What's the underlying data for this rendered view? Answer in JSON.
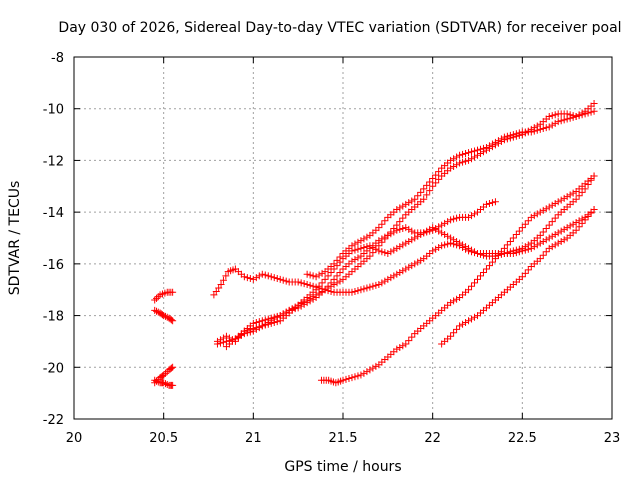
{
  "chart_data": {
    "type": "scatter",
    "title": "Day 030 of 2026, Sidereal Day-to-day VTEC variation (SDTVAR) for receiver poal",
    "xlabel": "GPS time / hours",
    "ylabel": "SDTVAR / TECUs",
    "xlim": [
      20,
      23
    ],
    "ylim": [
      -22,
      -8
    ],
    "xticks": [
      20,
      20.5,
      21,
      21.5,
      22,
      22.5,
      23
    ],
    "xtick_labels": [
      "20",
      "20.5",
      "21",
      "21.5",
      "22",
      "22.5",
      "23"
    ],
    "yticks": [
      -22,
      -20,
      -18,
      -16,
      -14,
      -12,
      -10,
      -8
    ],
    "ytick_labels": [
      "-22",
      "-20",
      "-18",
      "-16",
      "-14",
      "-12",
      "-10",
      "-8"
    ],
    "grid": true,
    "marker": "+",
    "color": "#ff0000",
    "series": [
      {
        "name": "s1",
        "points": [
          [
            20.45,
            -17.4
          ],
          [
            20.48,
            -17.2
          ],
          [
            20.52,
            -17.1
          ],
          [
            20.55,
            -17.1
          ]
        ]
      },
      {
        "name": "s2",
        "points": [
          [
            20.45,
            -17.8
          ],
          [
            20.48,
            -17.9
          ],
          [
            20.5,
            -18.0
          ],
          [
            20.53,
            -18.1
          ],
          [
            20.55,
            -18.2
          ]
        ]
      },
      {
        "name": "s3",
        "points": [
          [
            20.45,
            -20.6
          ],
          [
            20.48,
            -20.4
          ],
          [
            20.5,
            -20.3
          ],
          [
            20.53,
            -20.1
          ],
          [
            20.55,
            -20.0
          ]
        ]
      },
      {
        "name": "s4",
        "points": [
          [
            20.45,
            -20.5
          ],
          [
            20.48,
            -20.6
          ],
          [
            20.5,
            -20.6
          ],
          [
            20.53,
            -20.7
          ],
          [
            20.55,
            -20.7
          ]
        ]
      },
      {
        "name": "s5",
        "points": [
          [
            20.78,
            -17.2
          ],
          [
            20.82,
            -16.8
          ],
          [
            20.86,
            -16.3
          ],
          [
            20.9,
            -16.2
          ],
          [
            20.95,
            -16.5
          ],
          [
            21.0,
            -16.6
          ],
          [
            21.05,
            -16.4
          ],
          [
            21.1,
            -16.5
          ],
          [
            21.15,
            -16.6
          ],
          [
            21.2,
            -16.7
          ],
          [
            21.25,
            -16.7
          ],
          [
            21.3,
            -16.8
          ],
          [
            21.35,
            -16.9
          ],
          [
            21.4,
            -17.0
          ],
          [
            21.45,
            -17.1
          ],
          [
            21.5,
            -17.1
          ],
          [
            21.55,
            -17.1
          ],
          [
            21.6,
            -17.0
          ],
          [
            21.65,
            -16.9
          ],
          [
            21.7,
            -16.8
          ],
          [
            21.75,
            -16.6
          ],
          [
            21.8,
            -16.4
          ],
          [
            21.85,
            -16.2
          ],
          [
            21.9,
            -16.0
          ],
          [
            21.95,
            -15.8
          ],
          [
            22.0,
            -15.5
          ],
          [
            22.05,
            -15.3
          ],
          [
            22.1,
            -15.2
          ],
          [
            22.15,
            -15.3
          ],
          [
            22.2,
            -15.5
          ],
          [
            22.25,
            -15.6
          ],
          [
            22.3,
            -15.6
          ],
          [
            22.35,
            -15.6
          ],
          [
            22.4,
            -15.6
          ],
          [
            22.45,
            -15.6
          ],
          [
            22.5,
            -15.5
          ],
          [
            22.55,
            -15.4
          ],
          [
            22.6,
            -15.2
          ],
          [
            22.65,
            -15.0
          ],
          [
            22.7,
            -14.8
          ],
          [
            22.75,
            -14.6
          ],
          [
            22.8,
            -14.4
          ],
          [
            22.85,
            -14.2
          ],
          [
            22.9,
            -13.9
          ]
        ]
      },
      {
        "name": "s6",
        "points": [
          [
            20.8,
            -19.0
          ],
          [
            20.85,
            -18.8
          ],
          [
            20.9,
            -19.0
          ],
          [
            20.95,
            -18.6
          ],
          [
            21.0,
            -18.3
          ],
          [
            21.05,
            -18.2
          ],
          [
            21.1,
            -18.1
          ],
          [
            21.15,
            -18.0
          ],
          [
            21.2,
            -17.8
          ],
          [
            21.25,
            -17.7
          ],
          [
            21.3,
            -17.5
          ],
          [
            21.35,
            -17.3
          ],
          [
            21.4,
            -17.0
          ],
          [
            21.45,
            -16.6
          ],
          [
            21.5,
            -16.2
          ],
          [
            21.55,
            -15.9
          ],
          [
            21.6,
            -15.7
          ],
          [
            21.65,
            -15.4
          ],
          [
            21.7,
            -15.1
          ],
          [
            21.75,
            -14.9
          ],
          [
            21.8,
            -14.7
          ],
          [
            21.85,
            -14.6
          ],
          [
            21.9,
            -14.8
          ],
          [
            21.95,
            -14.8
          ],
          [
            22.0,
            -14.7
          ],
          [
            22.05,
            -14.5
          ],
          [
            22.1,
            -14.3
          ],
          [
            22.15,
            -14.2
          ],
          [
            22.2,
            -14.2
          ],
          [
            22.25,
            -14.0
          ],
          [
            22.3,
            -13.7
          ],
          [
            22.35,
            -13.6
          ]
        ]
      },
      {
        "name": "s7",
        "points": [
          [
            20.8,
            -19.1
          ],
          [
            20.85,
            -19.0
          ],
          [
            20.9,
            -18.9
          ],
          [
            20.95,
            -18.7
          ],
          [
            21.0,
            -18.6
          ],
          [
            21.05,
            -18.4
          ],
          [
            21.1,
            -18.3
          ],
          [
            21.15,
            -18.2
          ],
          [
            21.2,
            -17.9
          ],
          [
            21.25,
            -17.6
          ],
          [
            21.3,
            -17.3
          ],
          [
            21.35,
            -17.0
          ],
          [
            21.4,
            -16.6
          ],
          [
            21.45,
            -16.2
          ],
          [
            21.5,
            -15.8
          ],
          [
            21.55,
            -15.5
          ],
          [
            21.6,
            -15.4
          ],
          [
            21.65,
            -15.3
          ],
          [
            21.7,
            -15.5
          ],
          [
            21.75,
            -15.6
          ],
          [
            21.8,
            -15.4
          ],
          [
            21.85,
            -15.2
          ],
          [
            21.9,
            -15.0
          ],
          [
            21.95,
            -14.8
          ],
          [
            22.0,
            -14.6
          ],
          [
            22.05,
            -14.8
          ],
          [
            22.1,
            -15.0
          ],
          [
            22.15,
            -15.2
          ],
          [
            22.2,
            -15.4
          ],
          [
            22.25,
            -15.6
          ],
          [
            22.3,
            -15.7
          ],
          [
            22.35,
            -15.7
          ],
          [
            22.4,
            -15.6
          ],
          [
            22.45,
            -15.5
          ],
          [
            22.5,
            -15.4
          ],
          [
            22.55,
            -15.2
          ],
          [
            22.6,
            -14.9
          ],
          [
            22.65,
            -14.5
          ],
          [
            22.7,
            -14.1
          ],
          [
            22.75,
            -13.8
          ],
          [
            22.8,
            -13.5
          ],
          [
            22.85,
            -13.1
          ],
          [
            22.9,
            -12.6
          ]
        ]
      },
      {
        "name": "s8",
        "points": [
          [
            20.85,
            -19.2
          ],
          [
            20.9,
            -18.9
          ],
          [
            20.95,
            -18.6
          ],
          [
            21.0,
            -18.5
          ],
          [
            21.05,
            -18.4
          ],
          [
            21.1,
            -18.2
          ],
          [
            21.15,
            -18.0
          ],
          [
            21.2,
            -17.8
          ],
          [
            21.25,
            -17.6
          ],
          [
            21.3,
            -17.4
          ],
          [
            21.35,
            -17.2
          ],
          [
            21.4,
            -17.0
          ],
          [
            21.45,
            -16.8
          ],
          [
            21.5,
            -16.6
          ],
          [
            21.55,
            -16.3
          ],
          [
            21.6,
            -16.0
          ],
          [
            21.65,
            -15.7
          ],
          [
            21.7,
            -15.3
          ],
          [
            21.75,
            -14.9
          ],
          [
            21.8,
            -14.5
          ],
          [
            21.85,
            -14.1
          ],
          [
            21.9,
            -13.8
          ],
          [
            21.95,
            -13.5
          ],
          [
            22.0,
            -13.0
          ],
          [
            22.05,
            -12.6
          ],
          [
            22.1,
            -12.3
          ],
          [
            22.15,
            -12.1
          ],
          [
            22.2,
            -12.0
          ],
          [
            22.25,
            -11.8
          ],
          [
            22.3,
            -11.6
          ],
          [
            22.35,
            -11.4
          ],
          [
            22.4,
            -11.2
          ],
          [
            22.45,
            -11.1
          ],
          [
            22.5,
            -11.0
          ],
          [
            22.55,
            -10.8
          ],
          [
            22.6,
            -10.6
          ],
          [
            22.65,
            -10.3
          ],
          [
            22.7,
            -10.2
          ],
          [
            22.75,
            -10.2
          ],
          [
            22.8,
            -10.3
          ],
          [
            22.85,
            -10.1
          ],
          [
            22.9,
            -9.8
          ]
        ]
      },
      {
        "name": "s9",
        "points": [
          [
            21.3,
            -16.4
          ],
          [
            21.35,
            -16.5
          ],
          [
            21.4,
            -16.3
          ],
          [
            21.45,
            -16.0
          ],
          [
            21.5,
            -15.6
          ],
          [
            21.55,
            -15.3
          ],
          [
            21.6,
            -15.1
          ],
          [
            21.65,
            -14.9
          ],
          [
            21.7,
            -14.6
          ],
          [
            21.75,
            -14.2
          ],
          [
            21.8,
            -13.9
          ],
          [
            21.85,
            -13.7
          ],
          [
            21.9,
            -13.5
          ],
          [
            21.95,
            -13.1
          ],
          [
            22.0,
            -12.7
          ],
          [
            22.05,
            -12.3
          ],
          [
            22.1,
            -12.0
          ],
          [
            22.15,
            -11.8
          ],
          [
            22.2,
            -11.7
          ],
          [
            22.25,
            -11.6
          ],
          [
            22.3,
            -11.5
          ],
          [
            22.35,
            -11.3
          ],
          [
            22.4,
            -11.1
          ],
          [
            22.45,
            -11.0
          ],
          [
            22.5,
            -10.9
          ],
          [
            22.55,
            -10.9
          ],
          [
            22.6,
            -10.8
          ],
          [
            22.65,
            -10.7
          ],
          [
            22.7,
            -10.5
          ],
          [
            22.75,
            -10.4
          ],
          [
            22.8,
            -10.3
          ],
          [
            22.85,
            -10.2
          ],
          [
            22.9,
            -10.1
          ]
        ]
      },
      {
        "name": "s10",
        "points": [
          [
            21.38,
            -20.5
          ],
          [
            21.42,
            -20.5
          ],
          [
            21.46,
            -20.6
          ],
          [
            21.5,
            -20.5
          ],
          [
            21.55,
            -20.4
          ],
          [
            21.6,
            -20.3
          ],
          [
            21.65,
            -20.1
          ],
          [
            21.7,
            -19.9
          ],
          [
            21.75,
            -19.6
          ],
          [
            21.8,
            -19.3
          ],
          [
            21.85,
            -19.1
          ],
          [
            21.9,
            -18.7
          ],
          [
            21.95,
            -18.4
          ],
          [
            22.0,
            -18.1
          ],
          [
            22.05,
            -17.8
          ],
          [
            22.1,
            -17.5
          ],
          [
            22.15,
            -17.3
          ],
          [
            22.2,
            -17.0
          ],
          [
            22.25,
            -16.6
          ],
          [
            22.3,
            -16.2
          ],
          [
            22.35,
            -15.8
          ],
          [
            22.4,
            -15.4
          ],
          [
            22.45,
            -15.0
          ],
          [
            22.5,
            -14.6
          ],
          [
            22.55,
            -14.2
          ],
          [
            22.6,
            -14.0
          ],
          [
            22.65,
            -13.8
          ],
          [
            22.7,
            -13.6
          ],
          [
            22.75,
            -13.4
          ],
          [
            22.8,
            -13.2
          ],
          [
            22.85,
            -12.9
          ],
          [
            22.9,
            -12.6
          ]
        ]
      },
      {
        "name": "s11",
        "points": [
          [
            22.05,
            -19.1
          ],
          [
            22.1,
            -18.8
          ],
          [
            22.15,
            -18.4
          ],
          [
            22.2,
            -18.2
          ],
          [
            22.25,
            -18.0
          ],
          [
            22.3,
            -17.7
          ],
          [
            22.35,
            -17.4
          ],
          [
            22.4,
            -17.1
          ],
          [
            22.45,
            -16.8
          ],
          [
            22.5,
            -16.5
          ],
          [
            22.55,
            -16.1
          ],
          [
            22.6,
            -15.8
          ],
          [
            22.65,
            -15.4
          ],
          [
            22.7,
            -15.2
          ],
          [
            22.75,
            -15.0
          ],
          [
            22.8,
            -14.7
          ],
          [
            22.85,
            -14.3
          ],
          [
            22.9,
            -13.9
          ]
        ]
      }
    ]
  }
}
